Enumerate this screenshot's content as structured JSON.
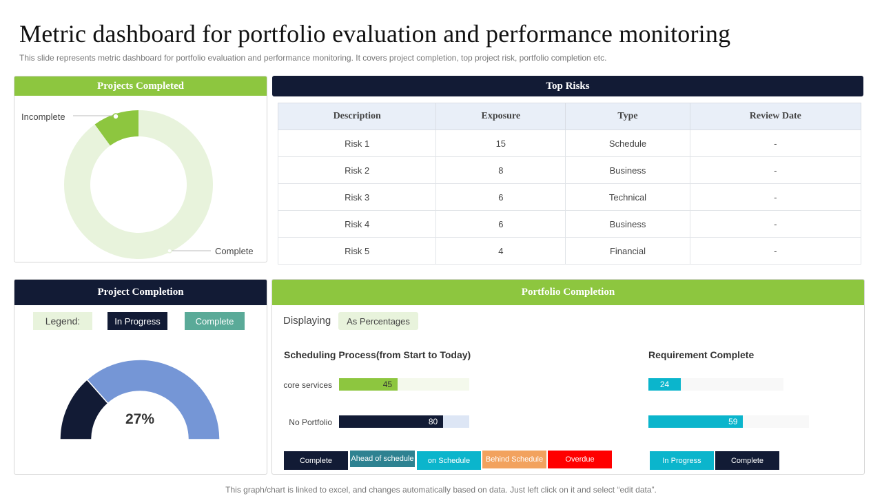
{
  "title": "Metric dashboard for portfolio evaluation and performance monitoring",
  "subtitle": "This slide represents metric dashboard for portfolio evaluation and performance monitoring. It covers project completion, top project risk, portfolio completion etc.",
  "footer": "This graph/chart is linked to excel, and changes automatically based on data. Just left click on it and select “edit data”.",
  "colors": {
    "green": "#8dc63f",
    "navy": "#121b35",
    "light_green": "#e8f3dc",
    "teal": "#5aaa98",
    "blue": "#7596d6",
    "cyan": "#0bb5cc",
    "orange": "#f2a25e",
    "red": "#ff0000",
    "dark_teal": "#2e8291"
  },
  "projects_completed": {
    "header": "Projects Completed",
    "label_incomplete": "Incomplete",
    "label_complete": "Complete"
  },
  "top_risks": {
    "header": "Top Risks",
    "columns": [
      "Description",
      "Exposure",
      "Type",
      "Review Date"
    ],
    "rows": [
      [
        "Risk 1",
        "15",
        "Schedule",
        "-"
      ],
      [
        "Risk 2",
        "8",
        "Business",
        "-"
      ],
      [
        "Risk 3",
        "6",
        "Technical",
        "-"
      ],
      [
        "Risk 4",
        "6",
        "Business",
        "-"
      ],
      [
        "Risk 5",
        "4",
        "Financial",
        "-"
      ]
    ]
  },
  "project_completion": {
    "header": "Project Completion",
    "legend_label": "Legend:",
    "legend_in_progress": "In Progress",
    "legend_complete": "Complete",
    "value_label": "27%"
  },
  "portfolio_completion": {
    "header": "Portfolio  Completion",
    "displaying_label": "Displaying",
    "displaying_value": "As Percentages",
    "scheduling_title": "Scheduling Process(from Start to Today)",
    "requirement_title": "Requirement Complete",
    "scheduling_status": [
      "Complete",
      "Ahead of schedule",
      "on Schedule",
      "Behind Schedule",
      "Overdue"
    ],
    "requirement_status": [
      "In Progress",
      "Complete"
    ]
  },
  "chart_data": [
    {
      "type": "pie",
      "variant": "donut",
      "labels": [
        "Incomplete",
        "Complete"
      ],
      "values": [
        10,
        90
      ],
      "title": "Projects Completed"
    },
    {
      "type": "pie",
      "variant": "half-donut gauge",
      "title": "Project Completion",
      "labels": [
        "Complete",
        "In Progress"
      ],
      "values": [
        27,
        73
      ],
      "center_label": "27%"
    },
    {
      "type": "bar",
      "orientation": "horizontal",
      "title": "Scheduling Process(from Start to Today)",
      "categories": [
        "core services",
        "No Portfolio"
      ],
      "values": [
        45,
        80
      ],
      "xlim": [
        0,
        100
      ]
    },
    {
      "type": "bar",
      "orientation": "horizontal",
      "title": "Requirement Complete",
      "categories": [
        "",
        ""
      ],
      "values": [
        24,
        59
      ],
      "xlim": [
        0,
        100
      ]
    }
  ]
}
